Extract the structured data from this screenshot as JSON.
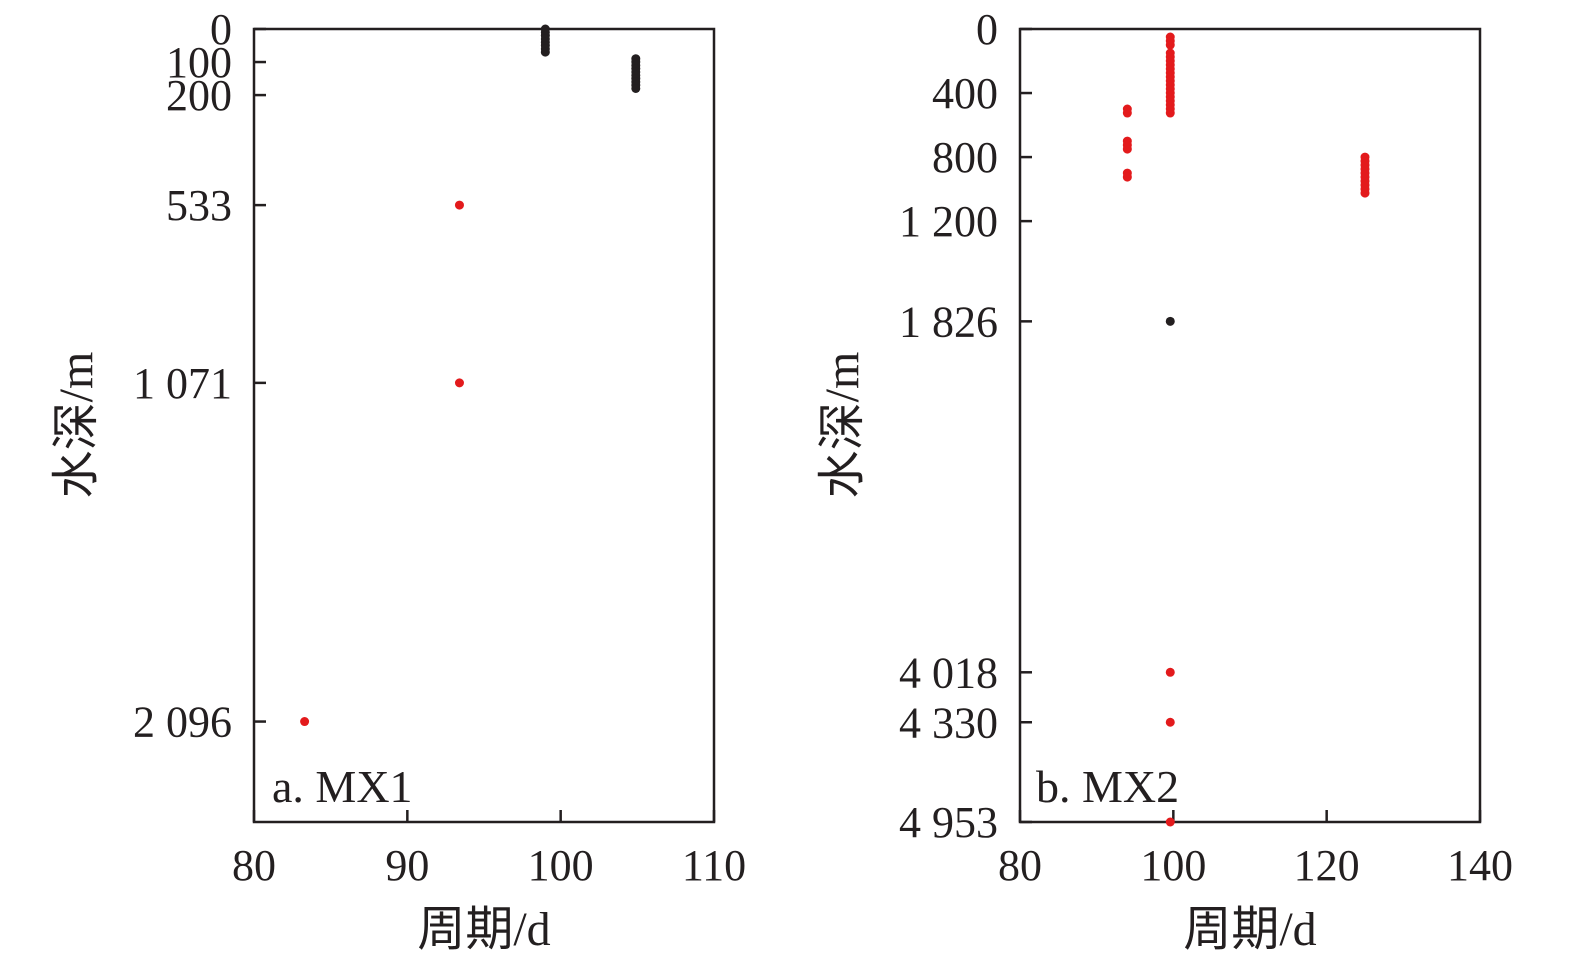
{
  "chart_data": [
    {
      "type": "scatter",
      "panel_label": "a. MX1",
      "xlabel": "周期/d",
      "ylabel": "水深/m",
      "xlim": [
        80,
        110
      ],
      "ylim": [
        2400,
        0
      ],
      "x_ticks": [
        80,
        90,
        100,
        110
      ],
      "x_tick_labels": [
        "80",
        "90",
        "100",
        "110"
      ],
      "y_ticks": [
        0,
        100,
        200,
        533,
        1071,
        2096
      ],
      "y_tick_labels": [
        "0",
        "100",
        "200",
        "533",
        "1 071",
        "2 096"
      ],
      "y_scale": "linear",
      "grid": false,
      "series": [
        {
          "color": "#e31a1c",
          "points": [
            {
              "x": 93.4,
              "y": 533
            },
            {
              "x": 93.4,
              "y": 1071
            },
            {
              "x": 83.3,
              "y": 2096
            }
          ]
        },
        {
          "color": "#231f20",
          "points": [
            {
              "x": 99.0,
              "y": 0
            },
            {
              "x": 99.0,
              "y": 10
            },
            {
              "x": 99.0,
              "y": 20
            },
            {
              "x": 99.0,
              "y": 30
            },
            {
              "x": 99.0,
              "y": 40
            },
            {
              "x": 99.0,
              "y": 50
            },
            {
              "x": 99.0,
              "y": 60
            },
            {
              "x": 99.0,
              "y": 70
            },
            {
              "x": 104.9,
              "y": 90
            },
            {
              "x": 104.9,
              "y": 100
            },
            {
              "x": 104.9,
              "y": 110
            },
            {
              "x": 104.9,
              "y": 120
            },
            {
              "x": 104.9,
              "y": 130
            },
            {
              "x": 104.9,
              "y": 140
            },
            {
              "x": 104.9,
              "y": 150
            },
            {
              "x": 104.9,
              "y": 160
            },
            {
              "x": 104.9,
              "y": 170
            },
            {
              "x": 104.9,
              "y": 180
            }
          ]
        }
      ]
    },
    {
      "type": "scatter",
      "panel_label": "b. MX2",
      "xlabel": "周期/d",
      "ylabel": "水深/m",
      "xlim": [
        80,
        140
      ],
      "ylim": [
        4953,
        0
      ],
      "x_ticks": [
        80,
        100,
        120,
        140
      ],
      "x_tick_labels": [
        "80",
        "100",
        "120",
        "140"
      ],
      "y_ticks": [
        0,
        400,
        800,
        1200,
        1826,
        4018,
        4330,
        4953
      ],
      "y_tick_labels": [
        "0",
        "400",
        "800",
        "1 200",
        "1 826",
        "4 018",
        "4 330",
        "4 953"
      ],
      "y_scale": "linear",
      "grid": false,
      "series": [
        {
          "color": "#e31a1c",
          "points": [
            {
              "x": 99.6,
              "y": 50
            },
            {
              "x": 99.6,
              "y": 75
            },
            {
              "x": 99.6,
              "y": 100
            },
            {
              "x": 99.6,
              "y": 150
            },
            {
              "x": 99.6,
              "y": 175
            },
            {
              "x": 99.6,
              "y": 200
            },
            {
              "x": 99.6,
              "y": 225
            },
            {
              "x": 99.6,
              "y": 250
            },
            {
              "x": 99.6,
              "y": 275
            },
            {
              "x": 99.6,
              "y": 300
            },
            {
              "x": 99.6,
              "y": 325
            },
            {
              "x": 99.6,
              "y": 350
            },
            {
              "x": 99.6,
              "y": 375
            },
            {
              "x": 99.6,
              "y": 400
            },
            {
              "x": 99.6,
              "y": 425
            },
            {
              "x": 99.6,
              "y": 450
            },
            {
              "x": 99.6,
              "y": 475
            },
            {
              "x": 99.6,
              "y": 500
            },
            {
              "x": 99.6,
              "y": 525
            },
            {
              "x": 94.0,
              "y": 500
            },
            {
              "x": 94.0,
              "y": 525
            },
            {
              "x": 94.0,
              "y": 700
            },
            {
              "x": 94.0,
              "y": 725
            },
            {
              "x": 94.0,
              "y": 750
            },
            {
              "x": 94.0,
              "y": 900
            },
            {
              "x": 94.0,
              "y": 925
            },
            {
              "x": 125.0,
              "y": 800
            },
            {
              "x": 125.0,
              "y": 825
            },
            {
              "x": 125.0,
              "y": 850
            },
            {
              "x": 125.0,
              "y": 875
            },
            {
              "x": 125.0,
              "y": 900
            },
            {
              "x": 125.0,
              "y": 925
            },
            {
              "x": 125.0,
              "y": 950
            },
            {
              "x": 125.0,
              "y": 975
            },
            {
              "x": 125.0,
              "y": 1000
            },
            {
              "x": 125.0,
              "y": 1025
            },
            {
              "x": 99.6,
              "y": 4018
            },
            {
              "x": 99.6,
              "y": 4330
            },
            {
              "x": 99.6,
              "y": 4953
            }
          ]
        },
        {
          "color": "#231f20",
          "points": [
            {
              "x": 99.6,
              "y": 1826
            }
          ]
        }
      ]
    }
  ]
}
